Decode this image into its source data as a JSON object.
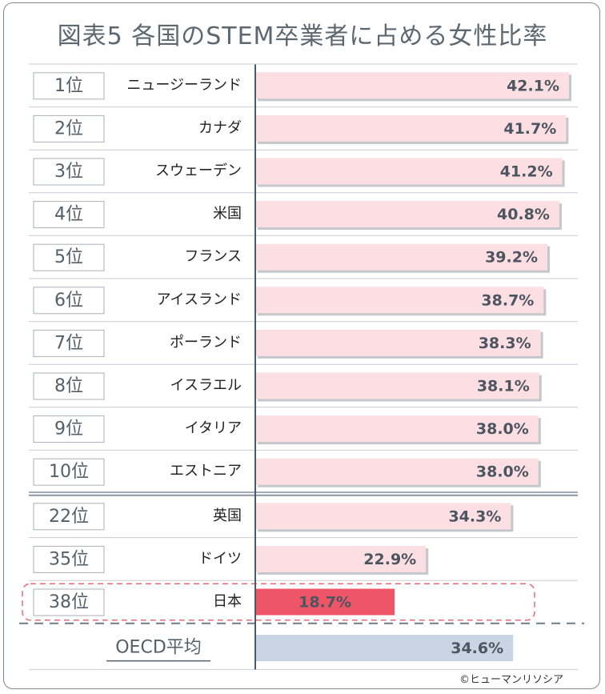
{
  "chart_data": {
    "type": "bar",
    "title": "図表5 各国のSTEM卒業者に占める女性比率",
    "value_unit": "%",
    "xlim": [
      0,
      42.1
    ],
    "groups": [
      {
        "name": "top10",
        "rows": [
          {
            "rank": "1位",
            "country": "ニュージーランド",
            "value": 42.1,
            "label": "42.1%"
          },
          {
            "rank": "2位",
            "country": "カナダ",
            "value": 41.7,
            "label": "41.7%"
          },
          {
            "rank": "3位",
            "country": "スウェーデン",
            "value": 41.2,
            "label": "41.2%"
          },
          {
            "rank": "4位",
            "country": "米国",
            "value": 40.8,
            "label": "40.8%"
          },
          {
            "rank": "5位",
            "country": "フランス",
            "value": 39.2,
            "label": "39.2%"
          },
          {
            "rank": "6位",
            "country": "アイスランド",
            "value": 38.7,
            "label": "38.7%"
          },
          {
            "rank": "7位",
            "country": "ポーランド",
            "value": 38.3,
            "label": "38.3%"
          },
          {
            "rank": "8位",
            "country": "イスラエル",
            "value": 38.1,
            "label": "38.1%"
          },
          {
            "rank": "9位",
            "country": "イタリア",
            "value": 38.0,
            "label": "38.0%"
          },
          {
            "rank": "10位",
            "country": "エストニア",
            "value": 38.0,
            "label": "38.0%"
          }
        ]
      },
      {
        "name": "selected",
        "rows": [
          {
            "rank": "22位",
            "country": "英国",
            "value": 34.3,
            "label": "34.3%"
          },
          {
            "rank": "35位",
            "country": "ドイツ",
            "value": 22.9,
            "label": "22.9%"
          },
          {
            "rank": "38位",
            "country": "日本",
            "value": 18.7,
            "label": "18.7%",
            "highlight": true
          }
        ]
      }
    ],
    "average": {
      "label": "OECD平均",
      "value": 34.6,
      "value_label": "34.6%"
    }
  },
  "colors": {
    "bar": "#fcdfe3",
    "bar_shadow": "#c4c8cc",
    "highlight_bar": "#ee5566",
    "average_bar": "#c9d5e4",
    "divider": "#4a5a6a",
    "separator": "#6a7a8a",
    "highlight_outline": "#e86a78"
  },
  "copyright": "©ヒューマンリソシア"
}
